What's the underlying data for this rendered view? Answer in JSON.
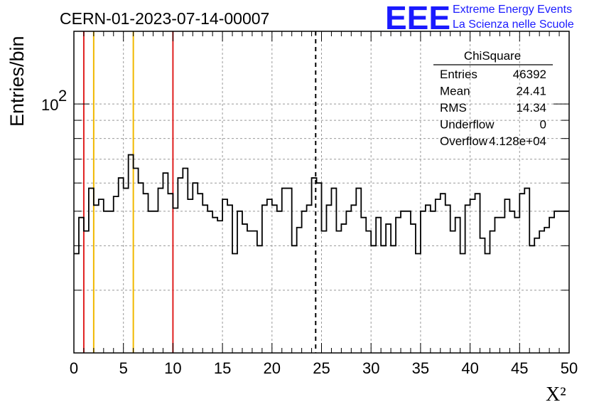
{
  "title": "CERN-01-2023-07-14-00007",
  "logo": {
    "acronym": "EEE",
    "line1": "Extreme Energy Events",
    "line2": "La Scienza nelle Scuole",
    "color": "#1a1aff"
  },
  "stats_box": {
    "name": "ChiSquare",
    "rows": [
      {
        "label": "Entries",
        "value": "46392"
      },
      {
        "label": "Mean",
        "value": "24.41"
      },
      {
        "label": "RMS",
        "value": "14.34"
      },
      {
        "label": "Underflow",
        "value": "0"
      },
      {
        "label": "Overflow",
        "value": "4.128e+04"
      }
    ]
  },
  "chart_data": {
    "type": "histogram",
    "xlabel": "X²",
    "ylabel": "Entries/bin",
    "xlim": [
      0,
      50
    ],
    "ylim": [
      20,
      160
    ],
    "yscale": "log",
    "grid": true,
    "x_tick_labels": [
      "0",
      "5",
      "10",
      "15",
      "20",
      "25",
      "30",
      "35",
      "40",
      "45",
      "50"
    ],
    "y_tick_labels": [
      {
        "base": "10",
        "exp": "2"
      }
    ],
    "bin_width": 0.5,
    "values": [
      38,
      48,
      44,
      58,
      52,
      54,
      50,
      50,
      55,
      62,
      58,
      72,
      66,
      60,
      56,
      50,
      50,
      58,
      64,
      56,
      51,
      62,
      66,
      54,
      60,
      56,
      52,
      50,
      48,
      47,
      54,
      52,
      38,
      50,
      46,
      44,
      44,
      40,
      52,
      54,
      52,
      50,
      58,
      58,
      40,
      45,
      50,
      52,
      62,
      60,
      44,
      52,
      58,
      44,
      46,
      50,
      52,
      58,
      48,
      44,
      40,
      48,
      40,
      46,
      40,
      48,
      50,
      50,
      46,
      38,
      50,
      52,
      50,
      54,
      56,
      52,
      44,
      48,
      38,
      52,
      54,
      56,
      42,
      38,
      44,
      48,
      48,
      54,
      50,
      48,
      56,
      58,
      40,
      42,
      44,
      45,
      48,
      50,
      50,
      50
    ],
    "vertical_lines": [
      {
        "x": 1,
        "color": "#e02020",
        "style": "solid"
      },
      {
        "x": 2,
        "color": "#f0b800",
        "style": "solid"
      },
      {
        "x": 6,
        "color": "#f0b800",
        "style": "solid"
      },
      {
        "x": 10,
        "color": "#e02020",
        "style": "solid"
      },
      {
        "x": 24.41,
        "color": "#000000",
        "style": "dashed"
      }
    ]
  }
}
